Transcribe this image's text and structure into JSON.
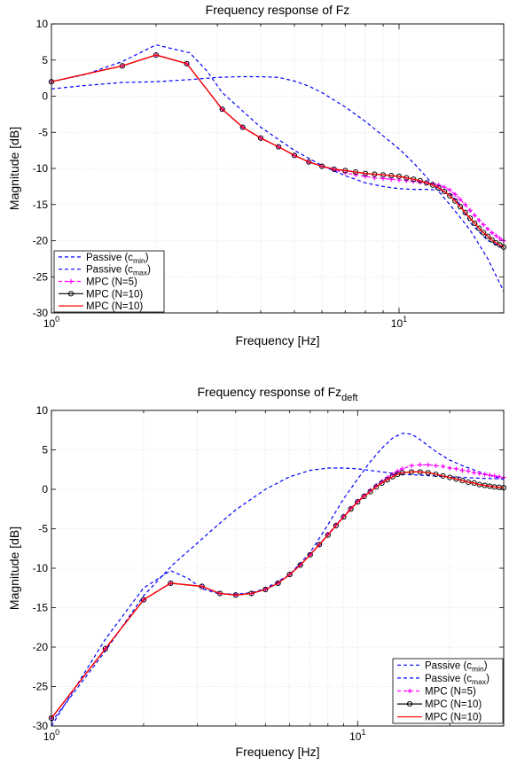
{
  "chart_data": [
    {
      "type": "line",
      "title": "Frequency response of Fz",
      "title_sub": "",
      "xlabel": "Frequency [Hz]",
      "ylabel": "Magnitude [dB]",
      "xscale": "log",
      "xlim": [
        1,
        20
      ],
      "ylim": [
        -30,
        10
      ],
      "yticks": [
        -30,
        -25,
        -20,
        -15,
        -10,
        -5,
        0,
        5,
        10
      ],
      "xtick_labels": [
        {
          "value": 1,
          "base": "10",
          "exp": "0"
        },
        {
          "value": 10,
          "base": "10",
          "exp": "1"
        }
      ],
      "grid": true,
      "legend_position": "bottom-left",
      "series": [
        {
          "name": "Passive (c",
          "name_sub": "min",
          "name_end": ")",
          "color": "#0000FF",
          "style": "dashed",
          "marker": "none",
          "x": [
            1.0,
            1.2,
            1.6,
            2.0,
            2.5,
            3.0,
            3.5,
            4.0,
            4.5,
            5.0,
            5.5,
            6.0,
            7.0,
            8.0,
            9.0,
            10.0,
            11.0,
            12.0,
            13.0,
            14.0,
            15.0,
            16.0,
            18.0,
            20.0
          ],
          "y": [
            1.0,
            1.4,
            1.9,
            2.0,
            2.3,
            2.6,
            2.7,
            2.7,
            2.6,
            2.1,
            1.4,
            0.5,
            -1.5,
            -3.5,
            -5.5,
            -7.3,
            -9.2,
            -11.2,
            -13.2,
            -15.0,
            -16.8,
            -18.5,
            -22.5,
            -27.0
          ]
        },
        {
          "name": "Passive (c",
          "name_sub": "max",
          "name_end": ")",
          "color": "#0000FF",
          "style": "dashed",
          "marker": "none",
          "x": [
            1.0,
            1.25,
            1.6,
            2.0,
            2.5,
            2.8,
            3.1,
            3.5,
            4.0,
            4.5,
            5.0,
            6.0,
            7.0,
            8.0,
            9.0,
            10.0,
            11.0,
            12.0,
            13.0,
            14.0,
            15.0,
            16.0,
            18.0,
            20.0
          ],
          "y": [
            2.0,
            3.0,
            4.8,
            7.1,
            6.0,
            3.5,
            0.5,
            -1.8,
            -4.3,
            -6.0,
            -7.5,
            -9.6,
            -11.0,
            -12.0,
            -12.5,
            -12.8,
            -12.9,
            -12.9,
            -13.0,
            -13.5,
            -15.0,
            -17.5,
            -20.0,
            -21.0
          ]
        },
        {
          "name": "MPC (N=5)",
          "color": "#FF00FF",
          "style": "dashed",
          "marker": "plus",
          "x": [
            1.0,
            1.6,
            2.0,
            2.45,
            3.1,
            3.55,
            4.0,
            4.5,
            5.0,
            5.5,
            6.0,
            6.5,
            7.0,
            7.5,
            8.0,
            8.5,
            9.0,
            9.5,
            10.0,
            10.5,
            11.0,
            11.5,
            12.0,
            12.5,
            13.0,
            13.5,
            14.0,
            14.5,
            15.0,
            15.5,
            16.0,
            16.5,
            17.0,
            17.5,
            18.0,
            18.5,
            19.0,
            19.5,
            20.0
          ],
          "y": [
            2.0,
            4.2,
            5.7,
            4.5,
            -1.8,
            -4.3,
            -5.8,
            -7.0,
            -8.2,
            -9.1,
            -9.7,
            -10.2,
            -10.6,
            -10.9,
            -11.1,
            -11.3,
            -11.4,
            -11.5,
            -11.6,
            -11.7,
            -11.8,
            -11.9,
            -12.0,
            -12.1,
            -12.3,
            -12.6,
            -13.0,
            -13.6,
            -14.3,
            -15.0,
            -15.8,
            -16.5,
            -17.2,
            -17.8,
            -18.4,
            -18.9,
            -19.3,
            -19.7,
            -20.0
          ]
        },
        {
          "name": "MPC (N=10)",
          "color": "#000000",
          "style": "solid",
          "marker": "circle",
          "x": [
            1.0,
            1.6,
            2.0,
            2.45,
            3.1,
            3.55,
            4.0,
            4.5,
            5.0,
            5.5,
            6.0,
            6.5,
            7.0,
            7.5,
            8.0,
            8.5,
            9.0,
            9.5,
            10.0,
            10.5,
            11.0,
            11.5,
            12.0,
            12.5,
            13.0,
            13.5,
            14.0,
            14.5,
            15.0,
            15.5,
            16.0,
            16.5,
            17.0,
            17.5,
            18.0,
            18.5,
            19.0,
            19.5,
            20.0
          ],
          "y": [
            2.0,
            4.2,
            5.7,
            4.5,
            -1.8,
            -4.3,
            -5.8,
            -7.0,
            -8.2,
            -9.1,
            -9.7,
            -10.1,
            -10.3,
            -10.5,
            -10.7,
            -10.8,
            -10.9,
            -11.0,
            -11.1,
            -11.3,
            -11.5,
            -11.7,
            -12.0,
            -12.3,
            -12.7,
            -13.2,
            -13.8,
            -14.5,
            -15.3,
            -16.1,
            -16.9,
            -17.6,
            -18.3,
            -18.9,
            -19.4,
            -19.9,
            -20.3,
            -20.6,
            -20.9
          ]
        },
        {
          "name": "MPC (N=10)",
          "color": "#FF0000",
          "style": "solid",
          "marker": "none",
          "x": [
            1.0,
            1.6,
            2.0,
            2.45,
            3.1,
            3.55,
            4.0,
            4.5,
            5.0,
            5.5,
            6.0,
            6.5,
            7.0,
            7.5,
            8.0,
            8.5,
            9.0,
            9.5,
            10.0,
            10.5,
            11.0,
            11.5,
            12.0,
            12.5,
            13.0,
            13.5,
            14.0,
            14.5,
            15.0,
            15.5,
            16.0,
            16.5,
            17.0,
            17.5,
            18.0,
            18.5,
            19.0,
            19.5,
            20.0
          ],
          "y": [
            2.0,
            4.2,
            5.7,
            4.5,
            -1.8,
            -4.3,
            -5.8,
            -7.0,
            -8.2,
            -9.1,
            -9.7,
            -10.1,
            -10.3,
            -10.5,
            -10.7,
            -10.8,
            -10.9,
            -11.0,
            -11.1,
            -11.3,
            -11.5,
            -11.7,
            -12.0,
            -12.3,
            -12.7,
            -13.2,
            -13.8,
            -14.5,
            -15.3,
            -16.1,
            -16.9,
            -17.6,
            -18.3,
            -18.9,
            -19.4,
            -19.9,
            -20.3,
            -20.6,
            -20.9
          ]
        }
      ]
    },
    {
      "type": "line",
      "title": "Frequency response of Fz",
      "title_sub": "deft",
      "xlabel": "Frequency [Hz]",
      "ylabel": "Magnitude [dB]",
      "xscale": "log",
      "xlim": [
        1,
        30
      ],
      "ylim": [
        -30,
        10
      ],
      "yticks": [
        -30,
        -25,
        -20,
        -15,
        -10,
        -5,
        0,
        5,
        10
      ],
      "xtick_labels": [
        {
          "value": 1,
          "base": "10",
          "exp": "0"
        },
        {
          "value": 10,
          "base": "10",
          "exp": "1"
        }
      ],
      "grid": true,
      "legend_position": "bottom-right",
      "series": [
        {
          "name": "Passive (c",
          "name_sub": "min",
          "name_end": ")",
          "color": "#0000FF",
          "style": "dashed",
          "marker": "none",
          "x": [
            1.0,
            1.5,
            2.0,
            2.5,
            3.0,
            3.5,
            4.0,
            5.0,
            6.0,
            7.0,
            8.0,
            9.0,
            10.0,
            12.0,
            14.0,
            16.0,
            20.0,
            25.0,
            30.0
          ],
          "y": [
            -29.5,
            -20.5,
            -13.5,
            -9.5,
            -6.8,
            -4.5,
            -2.6,
            0.0,
            1.6,
            2.4,
            2.7,
            2.7,
            2.6,
            2.2,
            1.9,
            1.8,
            1.6,
            1.4,
            1.3
          ]
        },
        {
          "name": "Passive (c",
          "name_sub": "max",
          "name_end": ")",
          "color": "#0000FF",
          "style": "dashed",
          "marker": "none",
          "x": [
            1.0,
            1.5,
            2.0,
            2.45,
            2.8,
            3.1,
            3.5,
            4.0,
            4.5,
            5.0,
            6.0,
            7.0,
            8.0,
            9.0,
            10.0,
            11.0,
            12.0,
            13.0,
            14.0,
            15.0,
            16.0,
            18.0,
            20.0,
            22.0,
            25.0,
            28.0,
            30.0
          ],
          "y": [
            -30.0,
            -19.0,
            -12.5,
            -10.3,
            -11.3,
            -12.6,
            -13.2,
            -13.3,
            -13.1,
            -12.6,
            -10.8,
            -8.0,
            -4.5,
            -1.2,
            1.3,
            3.5,
            5.2,
            6.5,
            7.1,
            7.0,
            6.3,
            4.8,
            3.7,
            3.0,
            2.2,
            1.6,
            1.3
          ]
        },
        {
          "name": "MPC (N=5)",
          "color": "#FF00FF",
          "style": "dashed",
          "marker": "plus",
          "x": [
            1.0,
            1.5,
            2.0,
            2.45,
            3.1,
            3.55,
            4.0,
            4.5,
            5.0,
            5.5,
            6.0,
            6.5,
            7.0,
            7.5,
            8.0,
            8.5,
            9.0,
            9.5,
            10.0,
            10.5,
            11.0,
            11.5,
            12.0,
            12.5,
            13.0,
            13.5,
            14.0,
            15.0,
            16.0,
            17.0,
            18.0,
            19.0,
            20.0,
            21.0,
            22.0,
            23.0,
            24.0,
            25.0,
            26.0,
            27.0,
            28.0,
            29.0,
            30.0
          ],
          "y": [
            -29.0,
            -20.2,
            -14.0,
            -11.9,
            -12.3,
            -13.2,
            -13.4,
            -13.2,
            -12.7,
            -11.9,
            -10.8,
            -9.6,
            -8.3,
            -7.0,
            -5.7,
            -4.5,
            -3.4,
            -2.4,
            -1.5,
            -0.8,
            -0.1,
            0.5,
            1.0,
            1.5,
            1.9,
            2.3,
            2.6,
            3.0,
            3.1,
            3.1,
            3.0,
            2.9,
            2.7,
            2.6,
            2.4,
            2.3,
            2.1,
            2.0,
            1.9,
            1.8,
            1.7,
            1.6,
            1.5
          ]
        },
        {
          "name": "MPC (N=10)",
          "color": "#000000",
          "style": "solid",
          "marker": "circle",
          "x": [
            1.0,
            1.5,
            2.0,
            2.45,
            3.1,
            3.55,
            4.0,
            4.5,
            5.0,
            5.5,
            6.0,
            6.5,
            7.0,
            7.5,
            8.0,
            8.5,
            9.0,
            9.5,
            10.0,
            10.5,
            11.0,
            11.5,
            12.0,
            12.5,
            13.0,
            13.5,
            14.0,
            15.0,
            16.0,
            17.0,
            18.0,
            19.0,
            20.0,
            21.0,
            22.0,
            23.0,
            24.0,
            25.0,
            26.0,
            27.0,
            28.0,
            29.0,
            30.0
          ],
          "y": [
            -29.0,
            -20.2,
            -14.0,
            -11.9,
            -12.3,
            -13.2,
            -13.4,
            -13.2,
            -12.7,
            -11.9,
            -10.8,
            -9.6,
            -8.3,
            -7.0,
            -5.8,
            -4.6,
            -3.5,
            -2.5,
            -1.6,
            -0.9,
            -0.3,
            0.3,
            0.8,
            1.2,
            1.6,
            1.9,
            2.1,
            2.2,
            2.2,
            2.1,
            1.9,
            1.7,
            1.5,
            1.3,
            1.1,
            0.9,
            0.8,
            0.6,
            0.5,
            0.4,
            0.3,
            0.25,
            0.2
          ]
        },
        {
          "name": "MPC (N=10)",
          "color": "#FF0000",
          "style": "solid",
          "marker": "none",
          "x": [
            1.0,
            1.5,
            2.0,
            2.45,
            3.1,
            3.55,
            4.0,
            4.5,
            5.0,
            5.5,
            6.0,
            6.5,
            7.0,
            7.5,
            8.0,
            8.5,
            9.0,
            9.5,
            10.0,
            10.5,
            11.0,
            11.5,
            12.0,
            12.5,
            13.0,
            13.5,
            14.0,
            15.0,
            16.0,
            17.0,
            18.0,
            19.0,
            20.0,
            21.0,
            22.0,
            23.0,
            24.0,
            25.0,
            26.0,
            27.0,
            28.0,
            29.0,
            30.0
          ],
          "y": [
            -29.0,
            -20.2,
            -14.0,
            -11.9,
            -12.3,
            -13.2,
            -13.4,
            -13.2,
            -12.7,
            -11.9,
            -10.8,
            -9.6,
            -8.3,
            -7.0,
            -5.8,
            -4.6,
            -3.5,
            -2.5,
            -1.6,
            -0.9,
            -0.3,
            0.3,
            0.8,
            1.2,
            1.6,
            1.9,
            2.1,
            2.2,
            2.2,
            2.1,
            1.9,
            1.7,
            1.5,
            1.3,
            1.1,
            0.9,
            0.8,
            0.6,
            0.5,
            0.4,
            0.3,
            0.25,
            0.2
          ]
        }
      ]
    }
  ]
}
